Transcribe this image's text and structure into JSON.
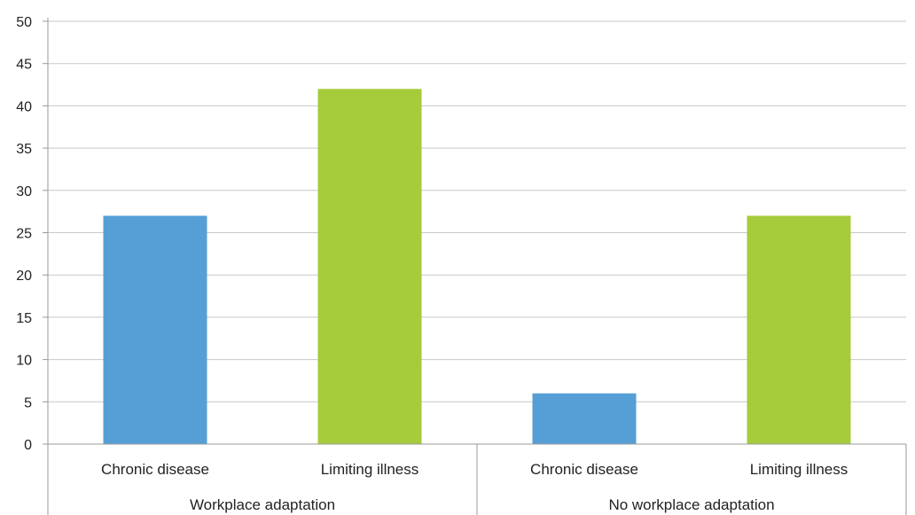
{
  "chart_data": {
    "type": "bar",
    "groups": [
      "Workplace adaptation",
      "No workplace adaptation"
    ],
    "categories": [
      "Chronic disease",
      "Limiting illness",
      "Chronic disease",
      "Limiting illness"
    ],
    "values": [
      27,
      42,
      6,
      27
    ],
    "group_of_category": [
      0,
      0,
      1,
      1
    ],
    "colors": [
      "#559fd6",
      "#a6cb3b",
      "#559fd6",
      "#a6cb3b"
    ],
    "ylim": [
      0,
      50
    ],
    "yticks": [
      0,
      5,
      10,
      15,
      20,
      25,
      30,
      35,
      40,
      45,
      50
    ],
    "grid": true,
    "title": "",
    "xlabel": "",
    "ylabel": ""
  }
}
